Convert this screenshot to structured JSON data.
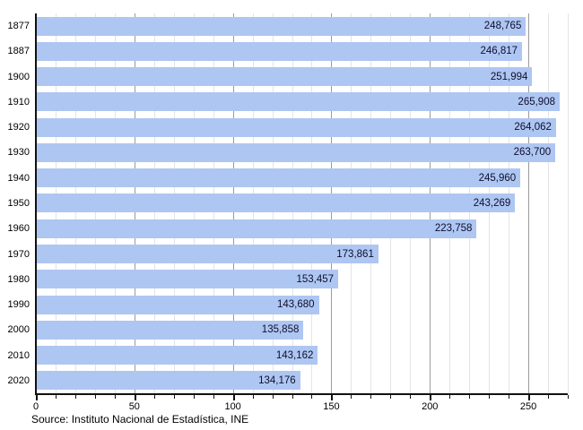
{
  "chart_data": {
    "type": "bar",
    "orientation": "horizontal",
    "title": "",
    "xlabel": "",
    "ylabel": "",
    "categories": [
      "1877",
      "1887",
      "1900",
      "1910",
      "1920",
      "1930",
      "1940",
      "1950",
      "1960",
      "1970",
      "1980",
      "1990",
      "2000",
      "2010",
      "2020"
    ],
    "values": [
      248765,
      246817,
      251994,
      265908,
      264062,
      263700,
      245960,
      243269,
      223758,
      173861,
      153457,
      143680,
      135858,
      143162,
      134176
    ],
    "value_labels": [
      "248,765",
      "246,817",
      "251,994",
      "265,908",
      "264,062",
      "263,700",
      "245,960",
      "243,269",
      "223,758",
      "173,861",
      "153,457",
      "143,680",
      "135,858",
      "143,162",
      "134,176"
    ],
    "xlim": [
      0,
      270000
    ],
    "x_ticks": [
      {
        "value": 0,
        "label": "0"
      },
      {
        "value": 50000,
        "label": "50"
      },
      {
        "value": 100000,
        "label": "100"
      },
      {
        "value": 150000,
        "label": "150"
      },
      {
        "value": 200000,
        "label": "200"
      },
      {
        "value": 250000,
        "label": "250"
      }
    ],
    "minor_tick_step": 10000,
    "grid": true,
    "legend_position": "none",
    "source": "Source: Instituto Nacional de Estadística, INE",
    "colors": {
      "bar": "#aec6f2",
      "value_text": "#0e0e2c",
      "axis": "#111111",
      "minor_grid": "#e4e4e4",
      "major_grid": "#9b9b9b",
      "background": "#ffffff"
    }
  }
}
